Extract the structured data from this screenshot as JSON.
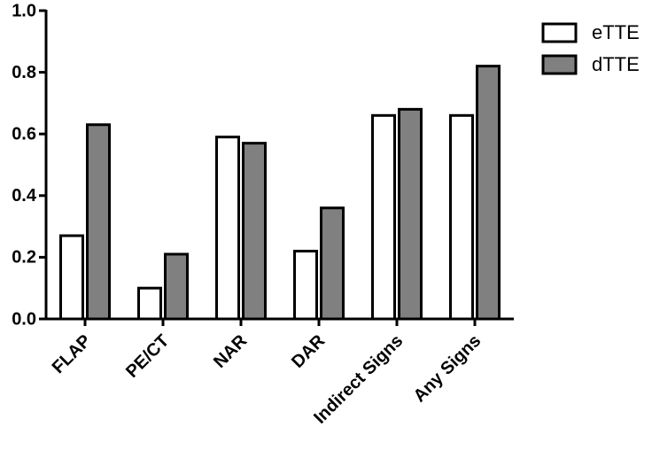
{
  "chart_data": {
    "type": "bar",
    "categories": [
      "FLAP",
      "PE/CT",
      "NAR",
      "DAR",
      "Indirect Signs",
      "Any Signs"
    ],
    "series": [
      {
        "name": "eTTE",
        "color": "#ffffff",
        "values": [
          0.27,
          0.1,
          0.59,
          0.22,
          0.66,
          0.66
        ]
      },
      {
        "name": "dTTE",
        "color": "#808080",
        "values": [
          0.63,
          0.21,
          0.57,
          0.36,
          0.68,
          0.82
        ]
      }
    ],
    "ylim": [
      0,
      1
    ],
    "yticks": [
      {
        "value": 0,
        "label": "0.0"
      },
      0.2,
      0.4,
      0.6,
      0.8,
      {
        "value": 1,
        "label": "1.0"
      }
    ],
    "legend": "top-right"
  }
}
